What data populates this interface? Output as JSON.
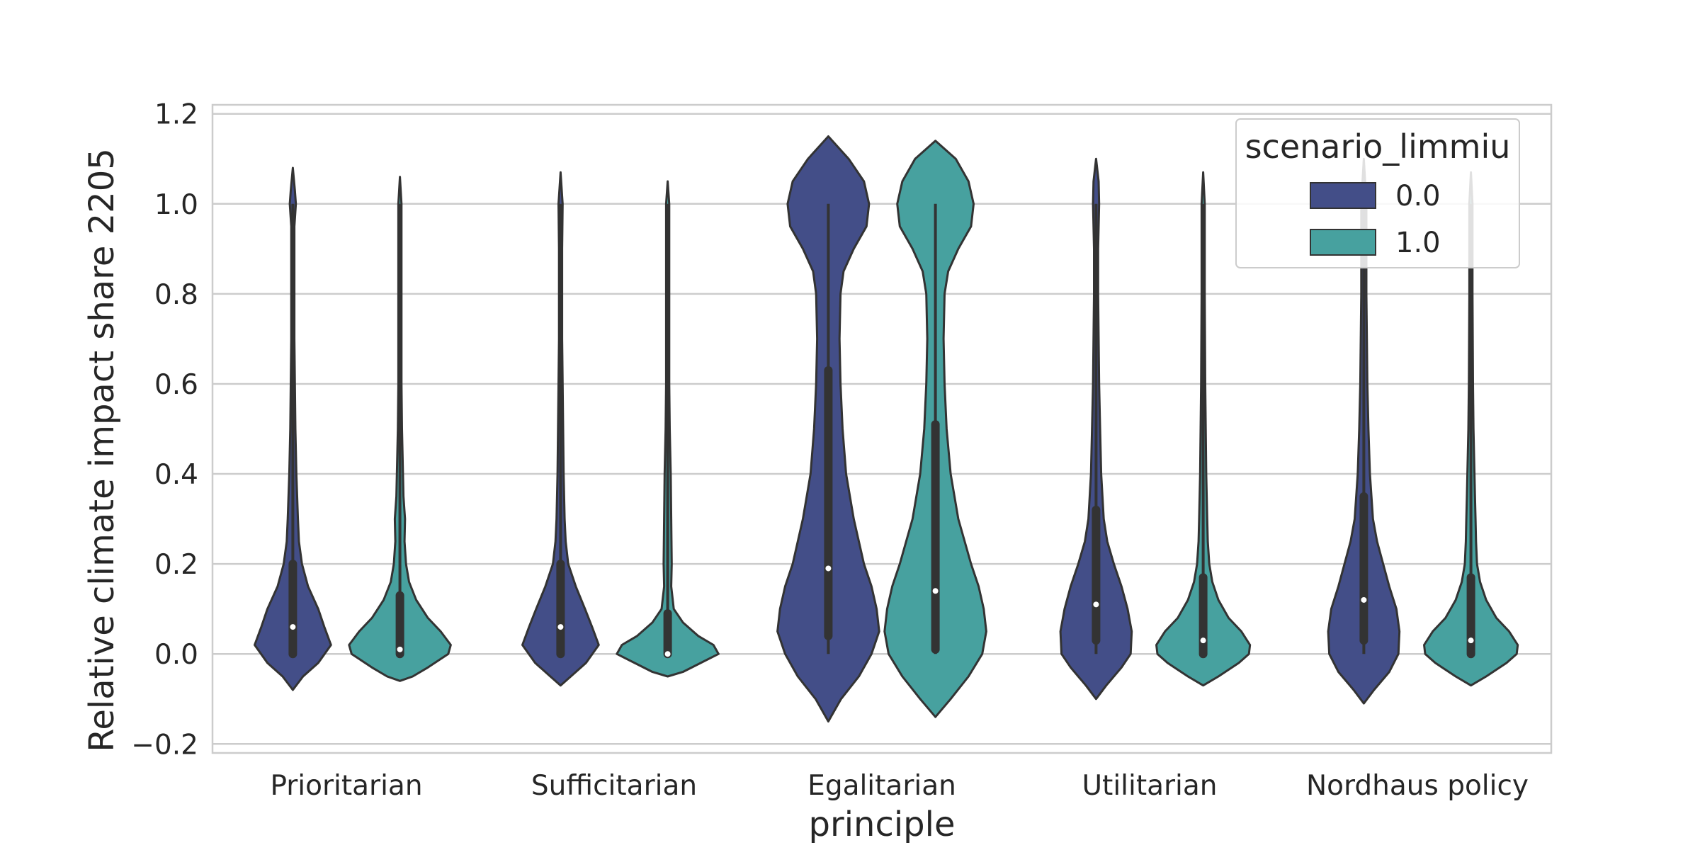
{
  "chart_data": {
    "type": "violin",
    "xlabel": "principle",
    "ylabel": "Relative climate impact share 2205",
    "ylim": [
      -0.22,
      1.22
    ],
    "yticks": [
      -0.2,
      0.0,
      0.2,
      0.4,
      0.6,
      0.8,
      1.0,
      1.2
    ],
    "ytick_labels": [
      "−0.2",
      "0.0",
      "0.2",
      "0.4",
      "0.6",
      "0.8",
      "1.0",
      "1.2"
    ],
    "grid": true,
    "categories": [
      "Prioritarian",
      "Sufficitarian",
      "Egalitarian",
      "Utilitarian",
      "Nordhaus policy"
    ],
    "legend": {
      "title": "scenario_limmiu",
      "placement": "top-right",
      "entries": [
        "0.0",
        "1.0"
      ]
    },
    "colors": {
      "0.0": "#434e88",
      "1.0": "#47a19f",
      "outline": "#333333",
      "grid": "#cccccc"
    },
    "series": [
      {
        "name": "0.0",
        "violins": [
          {
            "min": 0.0,
            "q1": 0.0,
            "median": 0.06,
            "q3": 0.2,
            "max": 1.0,
            "kde_min": -0.08,
            "kde_max": 1.08,
            "profile": [
              [
                -0.08,
                0.0
              ],
              [
                -0.05,
                0.2
              ],
              [
                -0.02,
                0.5
              ],
              [
                0.02,
                0.75
              ],
              [
                0.06,
                0.62
              ],
              [
                0.1,
                0.5
              ],
              [
                0.15,
                0.3
              ],
              [
                0.2,
                0.18
              ],
              [
                0.25,
                0.12
              ],
              [
                0.3,
                0.1
              ],
              [
                0.4,
                0.07
              ],
              [
                0.5,
                0.05
              ],
              [
                0.6,
                0.04
              ],
              [
                0.7,
                0.03
              ],
              [
                0.8,
                0.03
              ],
              [
                0.9,
                0.03
              ],
              [
                0.95,
                0.03
              ],
              [
                1.0,
                0.06
              ],
              [
                1.03,
                0.04
              ],
              [
                1.08,
                0.0
              ]
            ]
          },
          {
            "min": 0.0,
            "q1": 0.0,
            "median": 0.06,
            "q3": 0.2,
            "max": 1.0,
            "kde_min": -0.07,
            "kde_max": 1.07,
            "profile": [
              [
                -0.07,
                0.0
              ],
              [
                -0.05,
                0.2
              ],
              [
                -0.02,
                0.5
              ],
              [
                0.02,
                0.75
              ],
              [
                0.06,
                0.62
              ],
              [
                0.1,
                0.48
              ],
              [
                0.15,
                0.3
              ],
              [
                0.2,
                0.15
              ],
              [
                0.25,
                0.1
              ],
              [
                0.3,
                0.08
              ],
              [
                0.4,
                0.06
              ],
              [
                0.5,
                0.05
              ],
              [
                0.6,
                0.04
              ],
              [
                0.7,
                0.03
              ],
              [
                0.8,
                0.03
              ],
              [
                0.9,
                0.03
              ],
              [
                1.0,
                0.04
              ],
              [
                1.07,
                0.0
              ]
            ]
          },
          {
            "min": 0.0,
            "q1": 0.04,
            "median": 0.19,
            "q3": 0.63,
            "max": 1.0,
            "kde_min": -0.15,
            "kde_max": 1.15,
            "profile": [
              [
                -0.15,
                0.0
              ],
              [
                -0.1,
                0.25
              ],
              [
                -0.05,
                0.6
              ],
              [
                0.0,
                0.85
              ],
              [
                0.05,
                1.0
              ],
              [
                0.1,
                0.95
              ],
              [
                0.15,
                0.85
              ],
              [
                0.2,
                0.7
              ],
              [
                0.3,
                0.5
              ],
              [
                0.4,
                0.35
              ],
              [
                0.5,
                0.28
              ],
              [
                0.6,
                0.24
              ],
              [
                0.7,
                0.22
              ],
              [
                0.8,
                0.24
              ],
              [
                0.85,
                0.3
              ],
              [
                0.9,
                0.5
              ],
              [
                0.95,
                0.75
              ],
              [
                1.0,
                0.8
              ],
              [
                1.05,
                0.7
              ],
              [
                1.1,
                0.4
              ],
              [
                1.15,
                0.0
              ]
            ]
          },
          {
            "min": 0.0,
            "q1": 0.03,
            "median": 0.11,
            "q3": 0.32,
            "max": 1.0,
            "kde_min": -0.1,
            "kde_max": 1.1,
            "profile": [
              [
                -0.1,
                0.0
              ],
              [
                -0.07,
                0.2
              ],
              [
                -0.03,
                0.5
              ],
              [
                0.0,
                0.68
              ],
              [
                0.05,
                0.7
              ],
              [
                0.1,
                0.62
              ],
              [
                0.15,
                0.5
              ],
              [
                0.2,
                0.35
              ],
              [
                0.25,
                0.22
              ],
              [
                0.3,
                0.15
              ],
              [
                0.4,
                0.1
              ],
              [
                0.5,
                0.08
              ],
              [
                0.6,
                0.06
              ],
              [
                0.7,
                0.05
              ],
              [
                0.8,
                0.04
              ],
              [
                0.9,
                0.04
              ],
              [
                1.0,
                0.06
              ],
              [
                1.05,
                0.05
              ],
              [
                1.1,
                0.0
              ]
            ]
          },
          {
            "min": 0.0,
            "q1": 0.03,
            "median": 0.12,
            "q3": 0.35,
            "max": 1.0,
            "kde_min": -0.11,
            "kde_max": 1.1,
            "profile": [
              [
                -0.11,
                0.0
              ],
              [
                -0.08,
                0.2
              ],
              [
                -0.04,
                0.5
              ],
              [
                0.0,
                0.68
              ],
              [
                0.05,
                0.7
              ],
              [
                0.1,
                0.64
              ],
              [
                0.15,
                0.5
              ],
              [
                0.2,
                0.38
              ],
              [
                0.25,
                0.26
              ],
              [
                0.3,
                0.18
              ],
              [
                0.4,
                0.12
              ],
              [
                0.5,
                0.09
              ],
              [
                0.6,
                0.07
              ],
              [
                0.7,
                0.06
              ],
              [
                0.8,
                0.05
              ],
              [
                0.9,
                0.05
              ],
              [
                1.0,
                0.05
              ],
              [
                1.1,
                0.0
              ]
            ]
          }
        ]
      },
      {
        "name": "1.0",
        "violins": [
          {
            "min": 0.0,
            "q1": 0.0,
            "median": 0.01,
            "q3": 0.13,
            "max": 1.0,
            "kde_min": -0.06,
            "kde_max": 1.06,
            "profile": [
              [
                -0.06,
                0.0
              ],
              [
                -0.05,
                0.25
              ],
              [
                -0.03,
                0.55
              ],
              [
                0.0,
                0.95
              ],
              [
                0.02,
                1.0
              ],
              [
                0.05,
                0.8
              ],
              [
                0.08,
                0.55
              ],
              [
                0.12,
                0.32
              ],
              [
                0.16,
                0.18
              ],
              [
                0.2,
                0.12
              ],
              [
                0.25,
                0.09
              ],
              [
                0.3,
                0.1
              ],
              [
                0.35,
                0.07
              ],
              [
                0.4,
                0.06
              ],
              [
                0.5,
                0.04
              ],
              [
                0.6,
                0.03
              ],
              [
                0.8,
                0.03
              ],
              [
                1.0,
                0.03
              ],
              [
                1.06,
                0.0
              ]
            ]
          },
          {
            "min": 0.0,
            "q1": 0.0,
            "median": 0.0,
            "q3": 0.09,
            "max": 1.0,
            "kde_min": -0.05,
            "kde_max": 1.05,
            "profile": [
              [
                -0.05,
                0.0
              ],
              [
                -0.04,
                0.3
              ],
              [
                -0.02,
                0.65
              ],
              [
                0.0,
                1.0
              ],
              [
                0.02,
                0.9
              ],
              [
                0.04,
                0.6
              ],
              [
                0.07,
                0.3
              ],
              [
                0.1,
                0.12
              ],
              [
                0.15,
                0.07
              ],
              [
                0.2,
                0.08
              ],
              [
                0.3,
                0.07
              ],
              [
                0.4,
                0.06
              ],
              [
                0.5,
                0.04
              ],
              [
                0.6,
                0.03
              ],
              [
                0.8,
                0.03
              ],
              [
                1.0,
                0.03
              ],
              [
                1.05,
                0.0
              ]
            ]
          },
          {
            "min": 0.0,
            "q1": 0.01,
            "median": 0.14,
            "q3": 0.51,
            "max": 1.0,
            "kde_min": -0.14,
            "kde_max": 1.14,
            "profile": [
              [
                -0.14,
                0.0
              ],
              [
                -0.1,
                0.3
              ],
              [
                -0.05,
                0.65
              ],
              [
                0.0,
                0.92
              ],
              [
                0.05,
                1.0
              ],
              [
                0.1,
                0.95
              ],
              [
                0.15,
                0.85
              ],
              [
                0.2,
                0.7
              ],
              [
                0.3,
                0.45
              ],
              [
                0.4,
                0.3
              ],
              [
                0.5,
                0.22
              ],
              [
                0.6,
                0.18
              ],
              [
                0.7,
                0.16
              ],
              [
                0.8,
                0.18
              ],
              [
                0.85,
                0.25
              ],
              [
                0.9,
                0.45
              ],
              [
                0.95,
                0.7
              ],
              [
                1.0,
                0.75
              ],
              [
                1.05,
                0.65
              ],
              [
                1.1,
                0.4
              ],
              [
                1.14,
                0.0
              ]
            ]
          },
          {
            "min": 0.0,
            "q1": 0.0,
            "median": 0.03,
            "q3": 0.17,
            "max": 1.0,
            "kde_min": -0.07,
            "kde_max": 1.07,
            "profile": [
              [
                -0.07,
                0.0
              ],
              [
                -0.05,
                0.3
              ],
              [
                -0.02,
                0.7
              ],
              [
                0.0,
                0.9
              ],
              [
                0.02,
                0.92
              ],
              [
                0.05,
                0.75
              ],
              [
                0.08,
                0.5
              ],
              [
                0.12,
                0.3
              ],
              [
                0.16,
                0.18
              ],
              [
                0.2,
                0.12
              ],
              [
                0.25,
                0.09
              ],
              [
                0.3,
                0.08
              ],
              [
                0.35,
                0.07
              ],
              [
                0.4,
                0.06
              ],
              [
                0.5,
                0.05
              ],
              [
                0.6,
                0.04
              ],
              [
                0.8,
                0.03
              ],
              [
                1.0,
                0.03
              ],
              [
                1.07,
                0.0
              ]
            ]
          },
          {
            "min": 0.0,
            "q1": 0.0,
            "median": 0.03,
            "q3": 0.17,
            "max": 1.0,
            "kde_min": -0.07,
            "kde_max": 1.07,
            "profile": [
              [
                -0.07,
                0.0
              ],
              [
                -0.05,
                0.3
              ],
              [
                -0.02,
                0.7
              ],
              [
                0.0,
                0.9
              ],
              [
                0.02,
                0.92
              ],
              [
                0.05,
                0.75
              ],
              [
                0.08,
                0.5
              ],
              [
                0.12,
                0.3
              ],
              [
                0.16,
                0.18
              ],
              [
                0.2,
                0.12
              ],
              [
                0.25,
                0.1
              ],
              [
                0.3,
                0.09
              ],
              [
                0.35,
                0.08
              ],
              [
                0.4,
                0.07
              ],
              [
                0.5,
                0.05
              ],
              [
                0.6,
                0.04
              ],
              [
                0.8,
                0.03
              ],
              [
                1.0,
                0.03
              ],
              [
                1.07,
                0.0
              ]
            ]
          }
        ]
      }
    ]
  }
}
